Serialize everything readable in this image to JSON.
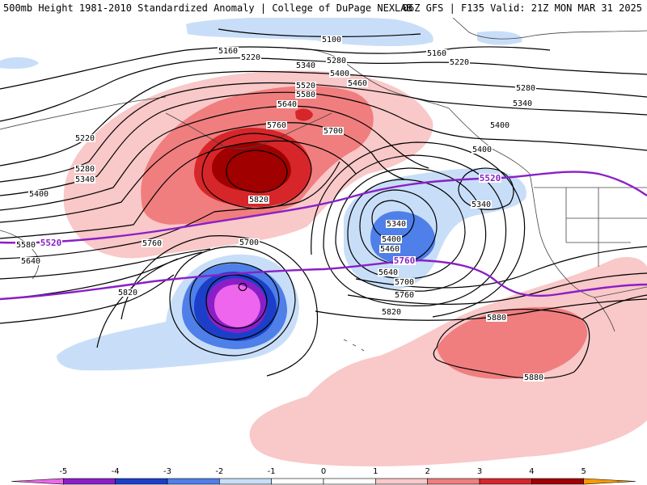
{
  "header": {
    "left_title": "500mb Height 1981-2010 Standardized Anomaly | College of DuPage NEXLAB",
    "right_title": "06Z GFS | F135 Valid: 21Z MON MAR 31 2025"
  },
  "colors": {
    "anom_neg5": "#ee66ee",
    "anom_neg4": "#8a1fc7",
    "anom_neg3": "#1b3fc8",
    "anom_neg2": "#4f7fe8",
    "anom_neg1": "#c8def8",
    "anom_pos1": "#f9c8c8",
    "anom_pos2": "#f07e7e",
    "anom_pos3": "#d6262a",
    "anom_pos4": "#a00000",
    "anom_pos5": "#f59a00",
    "thickness_line": "#8a1fc7",
    "contour": "#000000",
    "coastline": "#444444"
  },
  "height_contour_labels": [
    {
      "id": "c5100",
      "text": "5100"
    },
    {
      "id": "c5160a",
      "text": "5160"
    },
    {
      "id": "c5160b",
      "text": "5160"
    },
    {
      "id": "c5220a",
      "text": "5220"
    },
    {
      "id": "c5220b",
      "text": "5220"
    },
    {
      "id": "c5220c",
      "text": "5220"
    },
    {
      "id": "c5280a",
      "text": "5280"
    },
    {
      "id": "c5280b",
      "text": "5280"
    },
    {
      "id": "c5280c",
      "text": "5280"
    },
    {
      "id": "c5340a",
      "text": "5340"
    },
    {
      "id": "c5340b",
      "text": "5340"
    },
    {
      "id": "c5340c",
      "text": "5340"
    },
    {
      "id": "c5340d",
      "text": "5340"
    },
    {
      "id": "c5340e",
      "text": "5340"
    },
    {
      "id": "c5400a",
      "text": "5400"
    },
    {
      "id": "c5400b",
      "text": "5400"
    },
    {
      "id": "c5400c",
      "text": "5400"
    },
    {
      "id": "c5400d",
      "text": "5400"
    },
    {
      "id": "c5400e",
      "text": "5400"
    },
    {
      "id": "c5460a",
      "text": "5460"
    },
    {
      "id": "c5460b",
      "text": "5460"
    },
    {
      "id": "c5520",
      "text": "5520"
    },
    {
      "id": "c5580a",
      "text": "5580"
    },
    {
      "id": "c5580b",
      "text": "5580"
    },
    {
      "id": "c5640a",
      "text": "5640"
    },
    {
      "id": "c5640b",
      "text": "5640"
    },
    {
      "id": "c5640c",
      "text": "5640"
    },
    {
      "id": "c5700a",
      "text": "5700"
    },
    {
      "id": "c5700b",
      "text": "5700"
    },
    {
      "id": "c5700c",
      "text": "5700"
    },
    {
      "id": "c5760a",
      "text": "5760"
    },
    {
      "id": "c5760b",
      "text": "5760"
    },
    {
      "id": "c5760c",
      "text": "5760"
    },
    {
      "id": "c5820a",
      "text": "5820"
    },
    {
      "id": "c5820b",
      "text": "5820"
    },
    {
      "id": "c5820c",
      "text": "5820"
    },
    {
      "id": "c5880a",
      "text": "5880"
    },
    {
      "id": "c5880b",
      "text": "5880"
    }
  ],
  "thickness_labels": [
    {
      "id": "t5520a",
      "text": "5520"
    },
    {
      "id": "t5520b",
      "text": "5520"
    },
    {
      "id": "t5760",
      "text": "5760"
    }
  ],
  "colorbar": {
    "ticks": [
      "-5",
      "-4",
      "-3",
      "-2",
      "-1",
      "0",
      "1",
      "2",
      "3",
      "4",
      "5"
    ]
  }
}
